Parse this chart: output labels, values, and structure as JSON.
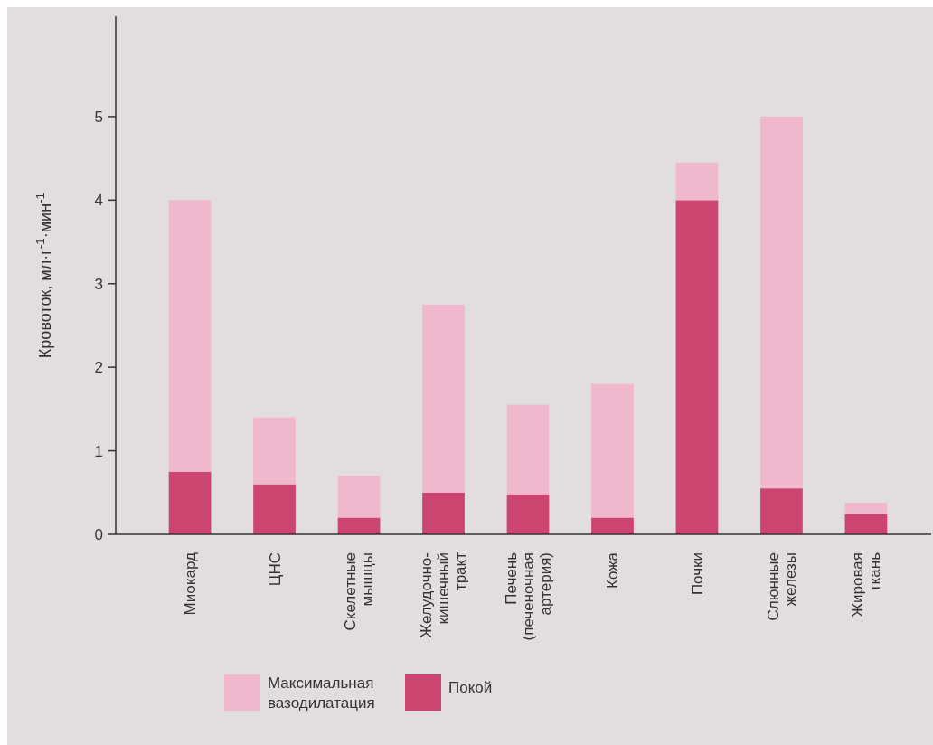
{
  "chart_data": {
    "type": "bar",
    "stacked": true,
    "ylabel": "Кровоток, мл·г$^{-1}$·мин$^{-1}$",
    "categories": [
      "Миокард",
      "ЦНС",
      "Скелетные мышцы",
      "Желудочно-кишечный тракт",
      "Печень (печеночная артерия)",
      "Кожа",
      "Почки",
      "Слюнные железы",
      "Жировая ткань"
    ],
    "series": [
      {
        "name": "Покой",
        "color": "#cc4470",
        "values": [
          0.75,
          0.6,
          0.2,
          0.5,
          0.48,
          0.2,
          4.0,
          0.55,
          0.24
        ]
      },
      {
        "name": "Максимальная вазодилатация",
        "color": "#f0b8cd",
        "values": [
          3.25,
          0.8,
          0.5,
          2.25,
          1.07,
          1.6,
          0.45,
          4.45,
          0.14
        ]
      }
    ],
    "ylim": [
      0,
      6.2
    ],
    "yticks": [
      0,
      1,
      2,
      3,
      4,
      5
    ],
    "grid": false,
    "legend": "bottom left"
  }
}
